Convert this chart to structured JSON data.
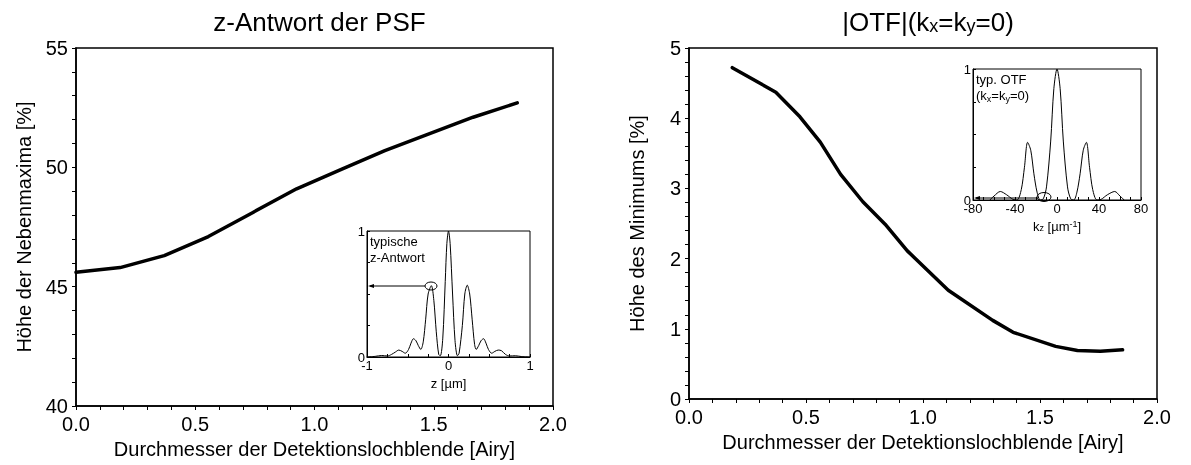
{
  "chart_data": [
    {
      "type": "line",
      "title": "z-Antwort der PSF",
      "xlabel": "Durchmesser der Detektionslochblende [Airy]",
      "ylabel": "Höhe der Nebenmaxima [%]",
      "color": "#000000",
      "x": [
        0,
        0.185,
        0.37,
        0.555,
        0.74,
        0.925,
        1.11,
        1.295,
        1.48,
        1.665,
        1.85
      ],
      "values": [
        45.6,
        45.8,
        46.3,
        47.1,
        48.1,
        49.1,
        49.9,
        50.7,
        51.4,
        52.1,
        52.7
      ],
      "xlim": [
        0,
        2
      ],
      "xticks": [
        {
          "value": 0,
          "label": "0.0"
        },
        0.5,
        {
          "value": 1,
          "label": "1.0"
        },
        1.5,
        {
          "value": 2,
          "label": "2.0"
        }
      ],
      "ylim": [
        40,
        55
      ],
      "yticks": [
        40,
        45,
        50,
        55
      ]
    },
    {
      "type": "line",
      "xlabel": "z [µm]",
      "annotations": [
        "typische\nz-Antwort"
      ],
      "color": "#000000",
      "x": [
        -1,
        -0.9,
        -0.82,
        -0.75,
        -0.7,
        -0.65,
        -0.61,
        -0.57,
        -0.53,
        -0.49,
        -0.46,
        -0.43,
        -0.4,
        -0.37,
        -0.34,
        -0.31,
        -0.28,
        -0.25,
        -0.21,
        -0.18,
        -0.15,
        -0.12,
        -0.1,
        -0.07,
        -0.04,
        -0.02,
        0,
        0.02,
        0.05,
        0.08,
        0.11,
        0.13,
        0.17,
        0.2,
        0.23,
        0.26,
        0.29,
        0.32,
        0.34,
        0.37,
        0.4,
        0.43,
        0.46,
        0.49,
        0.53,
        0.57,
        0.61,
        0.65,
        0.7,
        0.75,
        0.82,
        0.9,
        1
      ],
      "values": [
        0,
        0.005,
        0.012,
        0.008,
        0.02,
        0.04,
        0.055,
        0.045,
        0.03,
        0.06,
        0.11,
        0.145,
        0.13,
        0.09,
        0.06,
        0.12,
        0.3,
        0.5,
        0.566,
        0.45,
        0.2,
        0.02,
        0.01,
        0.15,
        0.6,
        0.9,
        1,
        0.9,
        0.5,
        0.13,
        0.01,
        0.03,
        0.25,
        0.5,
        0.57,
        0.5,
        0.3,
        0.1,
        0.06,
        0.09,
        0.13,
        0.145,
        0.11,
        0.06,
        0.03,
        0.045,
        0.055,
        0.05,
        0.02,
        0.008,
        0.01,
        0.003,
        0
      ],
      "xlim": [
        -1,
        1
      ],
      "xticks": [
        -1,
        0,
        1
      ],
      "ylim": [
        0,
        1
      ],
      "yticks": [
        0,
        1
      ]
    },
    {
      "type": "line",
      "title": "|OTF|(k$_{x}$=k$_{y}$=0)",
      "xlabel": "Durchmesser der Detektionslochblende [Airy]",
      "ylabel": "Höhe des Minimums [%]",
      "color": "#000000",
      "x": [
        0.185,
        0.371,
        0.474,
        0.561,
        0.648,
        0.743,
        0.838,
        0.933,
        1.108,
        1.298,
        1.385,
        1.567,
        1.66,
        1.758,
        1.853
      ],
      "values": [
        4.72,
        4.37,
        4.02,
        3.66,
        3.2,
        2.81,
        2.49,
        2.11,
        1.55,
        1.12,
        0.95,
        0.75,
        0.69,
        0.68,
        0.7
      ],
      "xlim": [
        0,
        2
      ],
      "xticks": [
        {
          "value": 0,
          "label": "0.0"
        },
        0.5,
        {
          "value": 1,
          "label": "1.0"
        },
        1.5,
        {
          "value": 2,
          "label": "2.0"
        }
      ],
      "ylim": [
        0,
        5
      ],
      "yticks": [
        0,
        1,
        2,
        3,
        4,
        5
      ]
    },
    {
      "type": "line",
      "xlabel": "k$_{z}$ [µm$^{-1}$]",
      "annotations": [
        "typ. OTF\n(k$_{x}$=k$_{y}$=0)"
      ],
      "color": "#000000",
      "x": [
        -64,
        -60,
        -54,
        -48,
        -42,
        -38,
        -34,
        -31,
        -28,
        -25,
        -22,
        -19,
        -16,
        -13,
        -10,
        -6,
        -3,
        0,
        3,
        6,
        10,
        13,
        16,
        19,
        22,
        25,
        28,
        31,
        34,
        38,
        42,
        48,
        55,
        60,
        64
      ],
      "values": [
        0,
        0.03,
        0.065,
        0.04,
        0.005,
        0,
        0.08,
        0.25,
        0.44,
        0.38,
        0.2,
        0.06,
        0,
        0.01,
        0.1,
        0.45,
        0.85,
        1,
        0.85,
        0.45,
        0.1,
        0.01,
        0,
        0.06,
        0.2,
        0.38,
        0.44,
        0.25,
        0.08,
        0,
        0.005,
        0.04,
        0.065,
        0.03,
        0
      ],
      "xlim": [
        -80,
        80
      ],
      "xticks": [
        -80,
        -40,
        0,
        40,
        80
      ],
      "ylim": [
        0,
        1
      ],
      "yticks": [
        0,
        1
      ]
    }
  ]
}
